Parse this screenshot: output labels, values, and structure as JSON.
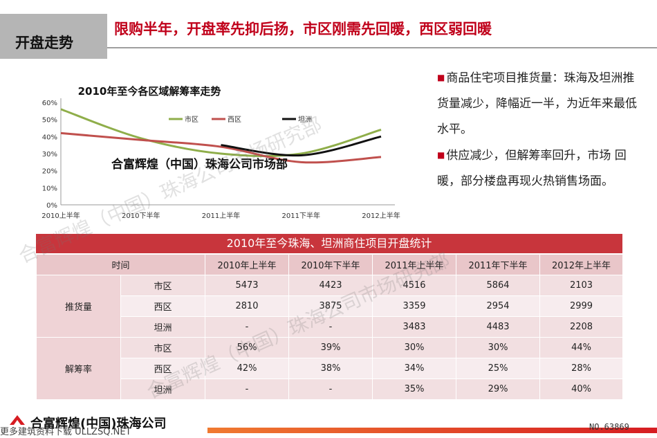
{
  "header": {
    "section_title": "开盘走势",
    "headline": "限购半年，开盘率先抑后扬，市区刚需先回暖，西区弱回暖"
  },
  "chart_data": {
    "type": "line",
    "title": "2010年至今各区域解筹率走势",
    "categories": [
      "2010上半年",
      "2010下半年",
      "2011上半年",
      "2011下半年",
      "2012上半年"
    ],
    "yticks": [
      "0%",
      "10%",
      "20%",
      "30%",
      "40%",
      "50%",
      "60%"
    ],
    "ylim": [
      0,
      60
    ],
    "grid": false,
    "legend_position": "top",
    "series": [
      {
        "name": "市区",
        "color": "#8fae4a",
        "values": [
          56,
          39,
          30,
          30,
          44
        ]
      },
      {
        "name": "西区",
        "color": "#c0504d",
        "values": [
          42,
          38,
          34,
          25,
          28
        ]
      },
      {
        "name": "坦洲",
        "color": "#111111",
        "values": [
          null,
          null,
          35,
          29,
          40
        ]
      }
    ],
    "overlay_text": "合富辉煌（中国）珠海公司市场部"
  },
  "bullets": [
    "商品住宅项目推货量：珠海及坦洲推货量减少，降幅近一半，为近年来最低水平。",
    "供应减少，但解筹率回升，市场 回暖，部分楼盘再现火热销售场面。"
  ],
  "table": {
    "title": "2010年至今珠海、坦洲商住项目开盘统计",
    "header": [
      "时间",
      "2010年上半年",
      "2010年下半年",
      "2011年上半年",
      "2011年下半年",
      "2012年上半年"
    ],
    "groups": [
      {
        "label": "推货量",
        "rows": [
          {
            "region": "市区",
            "values": [
              "5473",
              "4423",
              "4516",
              "5864",
              "2103"
            ]
          },
          {
            "region": "西区",
            "values": [
              "2810",
              "3875",
              "3359",
              "2954",
              "2999"
            ]
          },
          {
            "region": "坦洲",
            "values": [
              "-",
              "-",
              "3483",
              "4483",
              "2208"
            ]
          }
        ]
      },
      {
        "label": "解筹率",
        "rows": [
          {
            "region": "市区",
            "values": [
              "56%",
              "39%",
              "30%",
              "30%",
              "44%"
            ]
          },
          {
            "region": "西区",
            "values": [
              "42%",
              "38%",
              "34%",
              "25%",
              "28%"
            ]
          },
          {
            "region": "坦洲",
            "values": [
              "-",
              "-",
              "35%",
              "29%",
              "40%"
            ]
          }
        ]
      }
    ]
  },
  "watermark": {
    "text1": "合富辉煌（中国）珠海公司市场研究部",
    "text2": "合富辉煌（中国）珠海公司市场研究部"
  },
  "footer": {
    "company": "合富辉煌(中国)珠海公司",
    "page_code": "NO.63869",
    "overlay": "更多建筑资料下载 ULLZSQ.NET"
  }
}
